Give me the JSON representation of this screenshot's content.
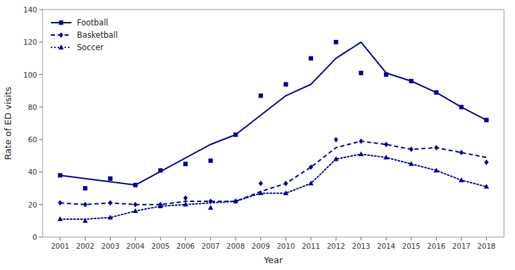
{
  "chart_data": {
    "type": "line",
    "x_label": "Year",
    "y_label": "Rate of ED visits",
    "xlim": [
      2000.3,
      2018.7
    ],
    "xticks": [
      2001,
      2002,
      2003,
      2004,
      2005,
      2006,
      2007,
      2008,
      2009,
      2010,
      2011,
      2012,
      2013,
      2014,
      2015,
      2016,
      2017,
      2018
    ],
    "ylim": [
      0,
      140
    ],
    "yticks": [
      0,
      20,
      40,
      60,
      80,
      100,
      120,
      140
    ],
    "grid": false,
    "legend": "upper left",
    "series": [
      {
        "name": "Football",
        "type": "line",
        "line_style": "solid",
        "color": "#00008B",
        "x": [
          2001,
          2004,
          2007,
          2008,
          2010,
          2011,
          2012,
          2013,
          2014,
          2015,
          2016,
          2017,
          2018
        ],
        "values": [
          38,
          32,
          57,
          63,
          87,
          94,
          110,
          120,
          101,
          96,
          89,
          80,
          72
        ]
      },
      {
        "type": "scatter",
        "marker": "square",
        "color": "#00008B",
        "x": [
          2001,
          2002,
          2003,
          2004,
          2005,
          2006,
          2007,
          2008,
          2009,
          2010,
          2011,
          2012,
          2013,
          2014,
          2015,
          2016,
          2017,
          2018
        ],
        "values": [
          38,
          30,
          36,
          32,
          41,
          45,
          47,
          63,
          87,
          94,
          110,
          120,
          101,
          100,
          96,
          89,
          80,
          72
        ]
      },
      {
        "name": "Basketball",
        "type": "line",
        "line_style": "dashed",
        "color": "#00008B",
        "x": [
          2001,
          2002,
          2003,
          2004,
          2005,
          2006,
          2007,
          2008,
          2009,
          2010,
          2011,
          2012,
          2013,
          2014,
          2015,
          2016,
          2017,
          2018
        ],
        "values": [
          21,
          20,
          21,
          20,
          20,
          22,
          22,
          22,
          28,
          33,
          43,
          55,
          59,
          57,
          54,
          55,
          52,
          49
        ]
      },
      {
        "type": "scatter",
        "marker": "diamond",
        "color": "#00008B",
        "x": [
          2001,
          2002,
          2003,
          2004,
          2005,
          2006,
          2007,
          2008,
          2009,
          2010,
          2011,
          2012,
          2013,
          2014,
          2015,
          2016,
          2017,
          2018
        ],
        "values": [
          21,
          20,
          21,
          20,
          20,
          24,
          22,
          22,
          33,
          33,
          43,
          60,
          59,
          57,
          54,
          55,
          52,
          46
        ]
      },
      {
        "name": "Soccer",
        "type": "line",
        "line_style": "dotted",
        "color": "#00008B",
        "x": [
          2001,
          2002,
          2003,
          2004,
          2005,
          2006,
          2007,
          2008,
          2009,
          2010,
          2011,
          2012,
          2013,
          2014,
          2015,
          2016,
          2017,
          2018
        ],
        "values": [
          11,
          11,
          12,
          16,
          19,
          20,
          21,
          22,
          27,
          27,
          33,
          48,
          51,
          49,
          45,
          41,
          35,
          31
        ]
      },
      {
        "type": "scatter",
        "marker": "triangle",
        "color": "#00008B",
        "x": [
          2001,
          2002,
          2003,
          2004,
          2005,
          2006,
          2007,
          2008,
          2009,
          2010,
          2011,
          2012,
          2013,
          2014,
          2015,
          2016,
          2017,
          2018
        ],
        "values": [
          11,
          10,
          12,
          16,
          19,
          20,
          18,
          22,
          27,
          27,
          33,
          48,
          51,
          49,
          45,
          41,
          35,
          31
        ]
      }
    ]
  }
}
